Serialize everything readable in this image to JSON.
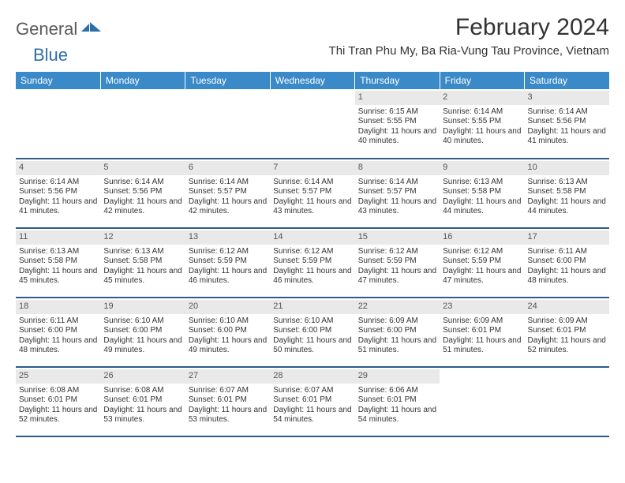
{
  "logo": {
    "part1": "General",
    "part2": "Blue"
  },
  "title": "February 2024",
  "location": "Thi Tran Phu My, Ba Ria-Vung Tau Province, Vietnam",
  "colors": {
    "header_bg": "#3a8ac9",
    "header_text": "#ffffff",
    "row_border": "#2d5c87",
    "daynum_bg": "#e9e9e9",
    "logo_gray": "#5a5a5a",
    "logo_blue": "#2f6fa8"
  },
  "weekdays": [
    "Sunday",
    "Monday",
    "Tuesday",
    "Wednesday",
    "Thursday",
    "Friday",
    "Saturday"
  ],
  "weeks": [
    [
      null,
      null,
      null,
      null,
      {
        "n": "1",
        "sr": "6:15 AM",
        "ss": "5:55 PM",
        "dl": "11 hours and 40 minutes."
      },
      {
        "n": "2",
        "sr": "6:14 AM",
        "ss": "5:55 PM",
        "dl": "11 hours and 40 minutes."
      },
      {
        "n": "3",
        "sr": "6:14 AM",
        "ss": "5:56 PM",
        "dl": "11 hours and 41 minutes."
      }
    ],
    [
      {
        "n": "4",
        "sr": "6:14 AM",
        "ss": "5:56 PM",
        "dl": "11 hours and 41 minutes."
      },
      {
        "n": "5",
        "sr": "6:14 AM",
        "ss": "5:56 PM",
        "dl": "11 hours and 42 minutes."
      },
      {
        "n": "6",
        "sr": "6:14 AM",
        "ss": "5:57 PM",
        "dl": "11 hours and 42 minutes."
      },
      {
        "n": "7",
        "sr": "6:14 AM",
        "ss": "5:57 PM",
        "dl": "11 hours and 43 minutes."
      },
      {
        "n": "8",
        "sr": "6:14 AM",
        "ss": "5:57 PM",
        "dl": "11 hours and 43 minutes."
      },
      {
        "n": "9",
        "sr": "6:13 AM",
        "ss": "5:58 PM",
        "dl": "11 hours and 44 minutes."
      },
      {
        "n": "10",
        "sr": "6:13 AM",
        "ss": "5:58 PM",
        "dl": "11 hours and 44 minutes."
      }
    ],
    [
      {
        "n": "11",
        "sr": "6:13 AM",
        "ss": "5:58 PM",
        "dl": "11 hours and 45 minutes."
      },
      {
        "n": "12",
        "sr": "6:13 AM",
        "ss": "5:58 PM",
        "dl": "11 hours and 45 minutes."
      },
      {
        "n": "13",
        "sr": "6:12 AM",
        "ss": "5:59 PM",
        "dl": "11 hours and 46 minutes."
      },
      {
        "n": "14",
        "sr": "6:12 AM",
        "ss": "5:59 PM",
        "dl": "11 hours and 46 minutes."
      },
      {
        "n": "15",
        "sr": "6:12 AM",
        "ss": "5:59 PM",
        "dl": "11 hours and 47 minutes."
      },
      {
        "n": "16",
        "sr": "6:12 AM",
        "ss": "5:59 PM",
        "dl": "11 hours and 47 minutes."
      },
      {
        "n": "17",
        "sr": "6:11 AM",
        "ss": "6:00 PM",
        "dl": "11 hours and 48 minutes."
      }
    ],
    [
      {
        "n": "18",
        "sr": "6:11 AM",
        "ss": "6:00 PM",
        "dl": "11 hours and 48 minutes."
      },
      {
        "n": "19",
        "sr": "6:10 AM",
        "ss": "6:00 PM",
        "dl": "11 hours and 49 minutes."
      },
      {
        "n": "20",
        "sr": "6:10 AM",
        "ss": "6:00 PM",
        "dl": "11 hours and 49 minutes."
      },
      {
        "n": "21",
        "sr": "6:10 AM",
        "ss": "6:00 PM",
        "dl": "11 hours and 50 minutes."
      },
      {
        "n": "22",
        "sr": "6:09 AM",
        "ss": "6:00 PM",
        "dl": "11 hours and 51 minutes."
      },
      {
        "n": "23",
        "sr": "6:09 AM",
        "ss": "6:01 PM",
        "dl": "11 hours and 51 minutes."
      },
      {
        "n": "24",
        "sr": "6:09 AM",
        "ss": "6:01 PM",
        "dl": "11 hours and 52 minutes."
      }
    ],
    [
      {
        "n": "25",
        "sr": "6:08 AM",
        "ss": "6:01 PM",
        "dl": "11 hours and 52 minutes."
      },
      {
        "n": "26",
        "sr": "6:08 AM",
        "ss": "6:01 PM",
        "dl": "11 hours and 53 minutes."
      },
      {
        "n": "27",
        "sr": "6:07 AM",
        "ss": "6:01 PM",
        "dl": "11 hours and 53 minutes."
      },
      {
        "n": "28",
        "sr": "6:07 AM",
        "ss": "6:01 PM",
        "dl": "11 hours and 54 minutes."
      },
      {
        "n": "29",
        "sr": "6:06 AM",
        "ss": "6:01 PM",
        "dl": "11 hours and 54 minutes."
      },
      null,
      null
    ]
  ],
  "labels": {
    "sunrise": "Sunrise:",
    "sunset": "Sunset:",
    "daylight": "Daylight:"
  }
}
